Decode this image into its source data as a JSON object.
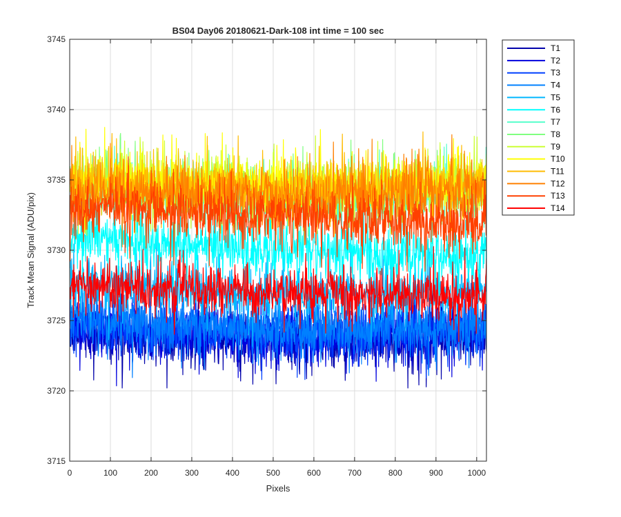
{
  "chart_data": {
    "type": "line",
    "title": "BS04 Day06 20180621-Dark-108 int time = 100 sec",
    "xlabel": "Pixels",
    "ylabel": "Track Mean Signal (ADU/pix)",
    "xlim": [
      0,
      1024
    ],
    "ylim": [
      3715,
      3745
    ],
    "xticks": [
      "0",
      "100",
      "200",
      "300",
      "400",
      "500",
      "600",
      "700",
      "800",
      "900",
      "1000"
    ],
    "yticks": [
      "3715",
      "3720",
      "3725",
      "3730",
      "3735",
      "3740",
      "3745"
    ],
    "grid": true,
    "legend_position": "outside-top-right",
    "n_points": 1024,
    "series": [
      {
        "name": "T1",
        "color": "#0000AA",
        "level": [
          3724.3,
          3723.8,
          3723.6,
          3723.4,
          3723.7,
          3724.0
        ],
        "noise": 1.0,
        "min": 3720.2,
        "max": 3727.2
      },
      {
        "name": "T2",
        "color": "#0000DD",
        "level": [
          3724.6,
          3724.1,
          3723.9,
          3723.8,
          3724.0,
          3724.2
        ],
        "noise": 1.0,
        "min": 3720.3,
        "max": 3727.5
      },
      {
        "name": "T3",
        "color": "#0040FF",
        "level": [
          3724.8,
          3724.4,
          3724.2,
          3724.0,
          3724.2,
          3724.4
        ],
        "noise": 1.0,
        "min": 3720.8,
        "max": 3728.0
      },
      {
        "name": "T4",
        "color": "#0080FF",
        "level": [
          3725.2,
          3724.8,
          3724.5,
          3724.3,
          3724.4,
          3724.6
        ],
        "noise": 1.0,
        "min": 3719.9,
        "max": 3728.5
      },
      {
        "name": "T5",
        "color": "#00B6FF",
        "level": [
          3727.8,
          3727.3,
          3727.0,
          3726.8,
          3727.0,
          3727.2
        ],
        "noise": 1.0,
        "min": 3723.0,
        "max": 3731.0
      },
      {
        "name": "T6",
        "color": "#00FFFF",
        "level": [
          3731.0,
          3730.6,
          3730.3,
          3730.0,
          3729.7,
          3729.6
        ],
        "noise": 1.0,
        "min": 3726.5,
        "max": 3734.0
      },
      {
        "name": "T7",
        "color": "#55FFCC",
        "level": [
          3734.2,
          3734.0,
          3733.8,
          3733.6,
          3733.8,
          3734.1
        ],
        "noise": 1.0,
        "min": 3730.0,
        "max": 3738.3
      },
      {
        "name": "T8",
        "color": "#80FF80",
        "level": [
          3734.8,
          3734.5,
          3734.3,
          3734.1,
          3734.3,
          3734.6
        ],
        "noise": 1.0,
        "min": 3730.5,
        "max": 3738.5
      },
      {
        "name": "T9",
        "color": "#CCFF33",
        "level": [
          3735.0,
          3734.8,
          3734.6,
          3734.4,
          3734.6,
          3734.9
        ],
        "noise": 1.0,
        "min": 3731.0,
        "max": 3739.0
      },
      {
        "name": "T10",
        "color": "#FFFF00",
        "level": [
          3735.0,
          3734.9,
          3734.7,
          3734.6,
          3734.7,
          3734.8
        ],
        "noise": 1.0,
        "min": 3731.0,
        "max": 3740.3
      },
      {
        "name": "T11",
        "color": "#FFBB00",
        "level": [
          3734.8,
          3734.6,
          3734.4,
          3734.3,
          3734.5,
          3734.7
        ],
        "noise": 1.0,
        "min": 3730.5,
        "max": 3739.3
      },
      {
        "name": "T12",
        "color": "#FF8000",
        "level": [
          3734.2,
          3734.0,
          3733.8,
          3733.8,
          3734.2,
          3734.5
        ],
        "noise": 1.0,
        "min": 3730.0,
        "max": 3739.4
      },
      {
        "name": "T13",
        "color": "#FF4000",
        "level": [
          3733.0,
          3732.8,
          3732.6,
          3732.3,
          3732.0,
          3731.6
        ],
        "noise": 1.0,
        "min": 3728.5,
        "max": 3738.0
      },
      {
        "name": "T14",
        "color": "#FF0000",
        "level": [
          3727.5,
          3727.3,
          3727.1,
          3727.0,
          3726.8,
          3726.5
        ],
        "noise": 0.9,
        "min": 3723.5,
        "max": 3730.5
      }
    ]
  }
}
